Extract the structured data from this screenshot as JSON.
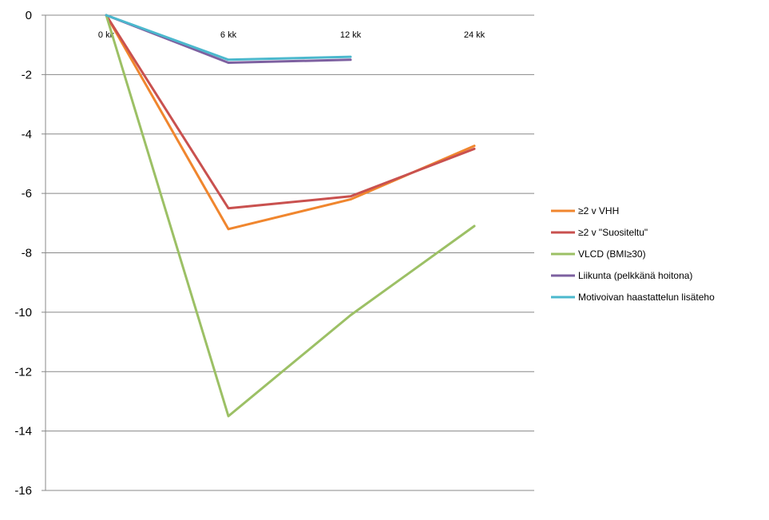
{
  "chart_data": {
    "type": "line",
    "categories": [
      "0 kk",
      "6 kk",
      "12 kk",
      "24 kk"
    ],
    "ylim": [
      -16,
      0
    ],
    "yticks": [
      0,
      -2,
      -4,
      -6,
      -8,
      -10,
      -12,
      -14,
      -16
    ],
    "grid": true,
    "legend_position": "right",
    "series": [
      {
        "name": "≥2 v VHH",
        "color": "#f0862e",
        "values": [
          0,
          -7.2,
          -6.2,
          -4.4
        ]
      },
      {
        "name": "≥2 v \"Suositeltu\"",
        "color": "#c9514f",
        "values": [
          0,
          -6.5,
          -6.1,
          -4.5
        ]
      },
      {
        "name": "VLCD (BMI≥30)",
        "color": "#9cc065",
        "values": [
          0,
          -13.5,
          -10.1,
          -7.1
        ]
      },
      {
        "name": "Liikunta (pelkkänä hoitona)",
        "color": "#7d60a0",
        "values": [
          0,
          -1.6,
          -1.5,
          null
        ]
      },
      {
        "name": "Motivoivan haastattelun lisäteho",
        "color": "#4bb8cd",
        "values": [
          0,
          -1.5,
          -1.4,
          null
        ]
      }
    ]
  }
}
